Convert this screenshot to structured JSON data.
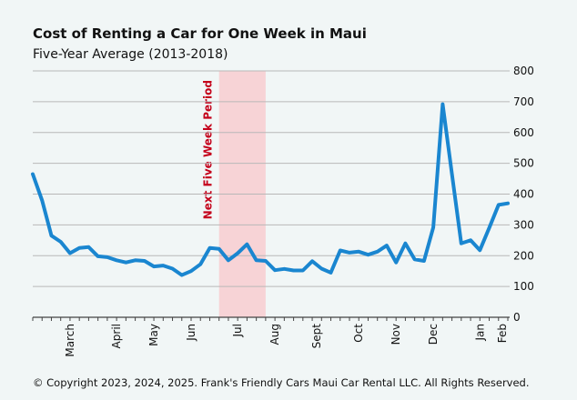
{
  "chart_data": {
    "type": "line",
    "title": "Cost of Renting a Car for One Week in Maui",
    "subtitle": "Five-Year Average (2013-2018)",
    "xlabel": "",
    "ylabel": "",
    "ylim": [
      0,
      800
    ],
    "yticks": [
      0,
      100,
      200,
      300,
      400,
      500,
      600,
      700,
      800
    ],
    "y_axis_side": "right",
    "grid": true,
    "legend": "none",
    "line_color": "#1a86d0",
    "band_color": "#f7d3d6",
    "band_label_color": "#c4001a",
    "x_range": [
      0,
      51
    ],
    "month_ticks": [
      {
        "label": "March",
        "x": 4
      },
      {
        "label": "April",
        "x": 9
      },
      {
        "label": "May",
        "x": 13
      },
      {
        "label": "Jun",
        "x": 17
      },
      {
        "label": "Jul",
        "x": 22
      },
      {
        "label": "Aug",
        "x": 26
      },
      {
        "label": "Sept",
        "x": 30.5
      },
      {
        "label": "Oct",
        "x": 35
      },
      {
        "label": "Nov",
        "x": 39
      },
      {
        "label": "Dec",
        "x": 43
      },
      {
        "label": "Jan",
        "x": 48
      },
      {
        "label": "Feb",
        "x": 52
      }
    ],
    "minor_tick_step": 1,
    "highlight_band": {
      "label": "Next Five Week Period",
      "x_start": 20,
      "x_end": 25
    },
    "series": [
      {
        "values": [
          465,
          380,
          265,
          245,
          208,
          225,
          228,
          198,
          195,
          185,
          178,
          185,
          183,
          165,
          168,
          158,
          137,
          150,
          172,
          225,
          222,
          185,
          208,
          237,
          185,
          183,
          153,
          157,
          152,
          152,
          182,
          158,
          145,
          217,
          210,
          213,
          203,
          213,
          233,
          178,
          240,
          188,
          183,
          292,
          692,
          465,
          240,
          250,
          218,
          290,
          365,
          370
        ]
      }
    ]
  },
  "footer": {
    "copyright": "© Copyright 2023, 2024, 2025. Frank's Friendly Cars Maui Car Rental LLC. All Rights Reserved."
  }
}
